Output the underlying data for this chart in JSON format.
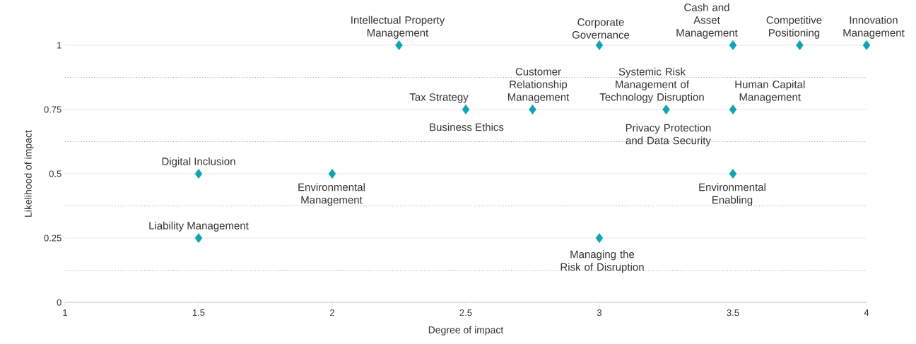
{
  "chart_data": {
    "type": "scatter",
    "xlabel": "Degree of impact",
    "ylabel": "Likelihood of impact",
    "x": [
      2.25,
      3,
      3.5,
      3.75,
      4,
      2.5,
      2.75,
      3.25,
      3.5,
      1.5,
      2,
      3.5,
      1.5,
      3
    ],
    "values": [
      1,
      1,
      1,
      1,
      1,
      0.75,
      0.75,
      0.75,
      0.75,
      0.5,
      0.5,
      0.5,
      0.25,
      0.25
    ],
    "color": "#12a3b3",
    "marker": "diamond",
    "xlim": [
      1,
      4
    ],
    "ylim": [
      0,
      1
    ],
    "xticks": [
      1,
      1.5,
      2,
      2.5,
      3,
      3.5,
      4
    ],
    "yticks": [
      0,
      0.25,
      0.5,
      0.75,
      1
    ],
    "grid": "y",
    "ref_lines": [
      {
        "axis": "y",
        "value": 0.125,
        "line_style": "dotted",
        "color": "#9a9a9a"
      },
      {
        "axis": "y",
        "value": 0.375,
        "line_style": "dotted",
        "color": "#9a9a9a"
      },
      {
        "axis": "y",
        "value": 0.625,
        "line_style": "dotted",
        "color": "#9a9a9a"
      },
      {
        "axis": "y",
        "value": 0.875,
        "line_style": "dotted",
        "color": "#9a9a9a"
      }
    ],
    "annotations": [
      {
        "text": "Intellectual Property Management",
        "x": 2.25,
        "y": 1
      },
      {
        "text": "Corporate Governance",
        "x": 3,
        "y": 1
      },
      {
        "text": "Cash and Asset Management",
        "x": 3.5,
        "y": 1
      },
      {
        "text": "Competitive Positioning",
        "x": 3.75,
        "y": 1
      },
      {
        "text": "Innovation Management",
        "x": 4,
        "y": 1
      },
      {
        "text": "Tax Strategy",
        "x": 2.5,
        "y": 0.75
      },
      {
        "text": "Business Ethics",
        "x": 2.5,
        "y": 0.75
      },
      {
        "text": "Customer Relationship Management",
        "x": 2.75,
        "y": 0.75
      },
      {
        "text": "Systemic Risk Management of Technology Disruption",
        "x": 3.25,
        "y": 0.75
      },
      {
        "text": "Privacy Protection and Data Security",
        "x": 3.25,
        "y": 0.75
      },
      {
        "text": "Human Capital Management",
        "x": 3.5,
        "y": 0.75
      },
      {
        "text": "Digital Inclusion",
        "x": 1.5,
        "y": 0.5
      },
      {
        "text": "Environmental Management",
        "x": 2,
        "y": 0.5
      },
      {
        "text": "Environmental Enabling",
        "x": 3.5,
        "y": 0.5
      },
      {
        "text": "Liability Management",
        "x": 1.5,
        "y": 0.25
      },
      {
        "text": "Managing the Risk of Disruption",
        "x": 3,
        "y": 0.25
      }
    ]
  }
}
